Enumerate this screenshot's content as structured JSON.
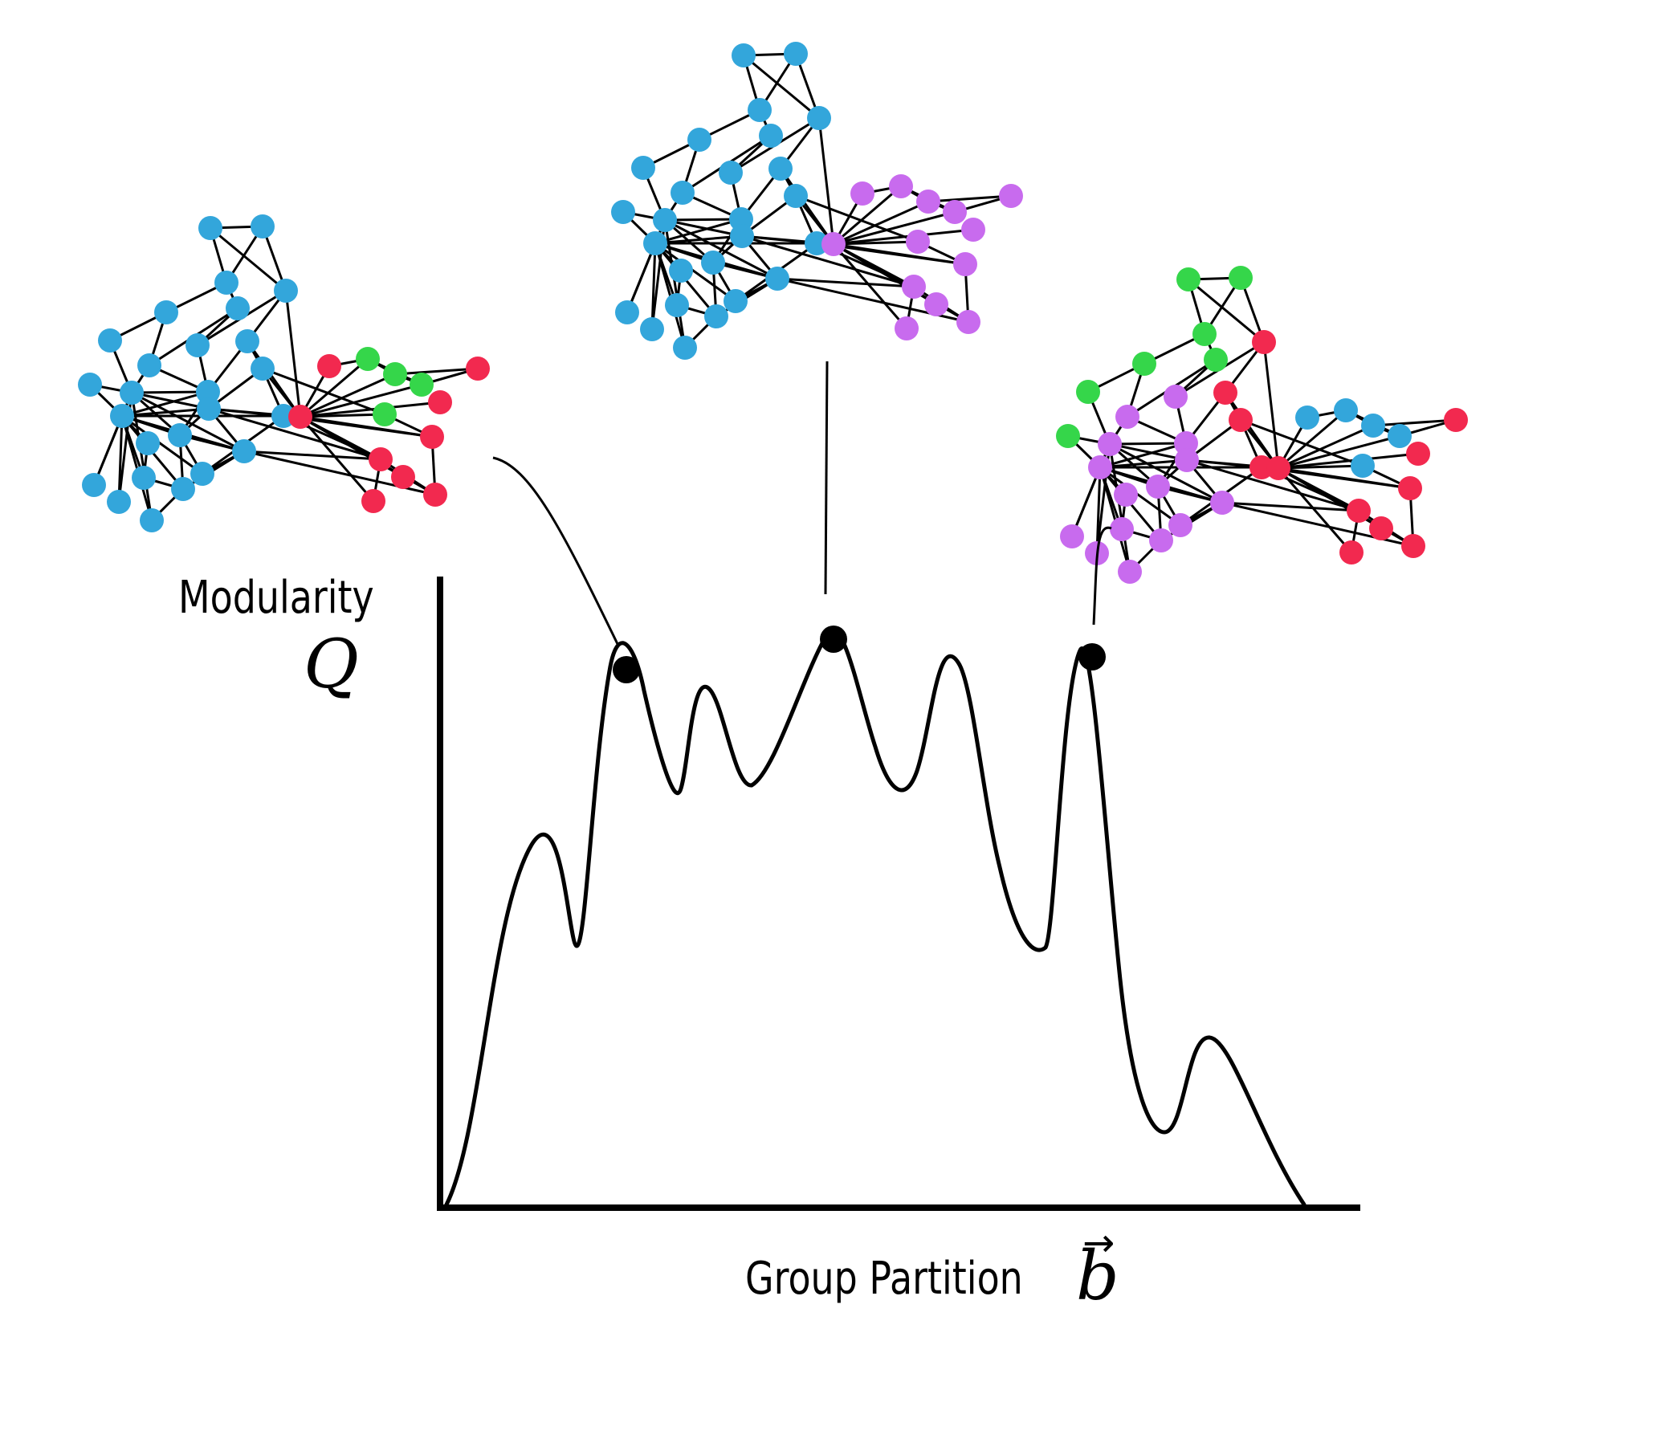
{
  "y_axis": {
    "label": "Modularity",
    "symbol": "Q"
  },
  "x_axis": {
    "label": "Group Partition",
    "symbol": "b",
    "symbol_accent": "→"
  },
  "colors": {
    "line": "#000000",
    "blue": "#33a6db",
    "red": "#f2294f",
    "green": "#35d64a",
    "purple": "#c86bee"
  },
  "networks": [
    {
      "name": "network-left",
      "groups": [
        "blue",
        "red",
        "green"
      ]
    },
    {
      "name": "network-middle",
      "groups": [
        "blue",
        "purple"
      ]
    },
    {
      "name": "network-right",
      "groups": [
        "green",
        "purple",
        "red",
        "blue"
      ]
    }
  ],
  "highlighted_peaks": 3
}
